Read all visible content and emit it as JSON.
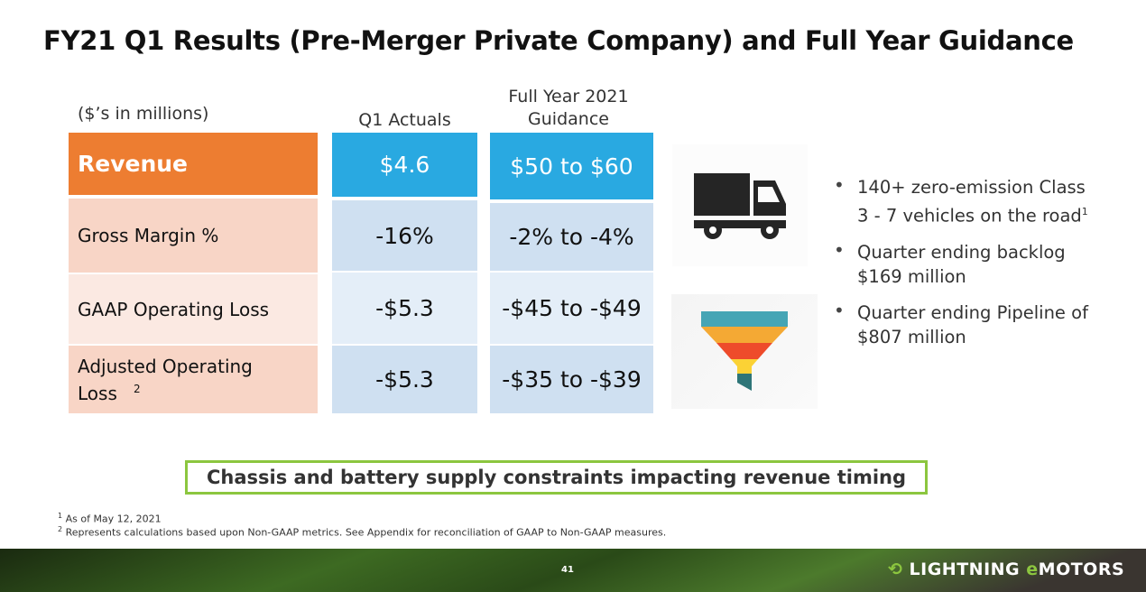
{
  "title": "FY21 Q1 Results (Pre-Merger Private Company) and Full Year Guidance",
  "table": {
    "unit_note": "($’s in millions)",
    "col_q1": "Q1 Actuals",
    "col_fy_line1": "Full Year 2021",
    "col_fy_line2": "Guidance",
    "rows": [
      {
        "label": "Revenue",
        "q1": "$4.6",
        "fy": "$50 to $60"
      },
      {
        "label": "Gross Margin %",
        "q1": "-16%",
        "fy": "-2% to -4%"
      },
      {
        "label": "GAAP Operating Loss",
        "q1": "-$5.3",
        "fy": "-$45 to -$49"
      },
      {
        "label": "Adjusted Operating Loss",
        "sup": "2",
        "q1": "-$5.3",
        "fy": "-$35 to -$39"
      }
    ]
  },
  "bullets": [
    {
      "text": "140+ zero-emission Class 3 - 7 vehicles on the road",
      "sup": "1"
    },
    {
      "text": "Quarter ending backlog $169 million"
    },
    {
      "text": "Quarter ending Pipeline of $807 million"
    }
  ],
  "icons": [
    "truck-icon",
    "funnel-icon"
  ],
  "banner": "Chassis and battery supply constraints impacting revenue timing",
  "footnotes": [
    {
      "sup": "1",
      "text": "As of May 12, 2021"
    },
    {
      "sup": "2",
      "text": "Represents calculations based upon Non-GAAP metrics.  See Appendix for reconciliation of GAAP to Non-GAAP measures."
    }
  ],
  "page_number": "41",
  "logo": "LIGHTNING eMOTORS",
  "colors": {
    "orange": "#ED7D31",
    "blue": "#29A9E1",
    "green": "#8CC63F"
  }
}
